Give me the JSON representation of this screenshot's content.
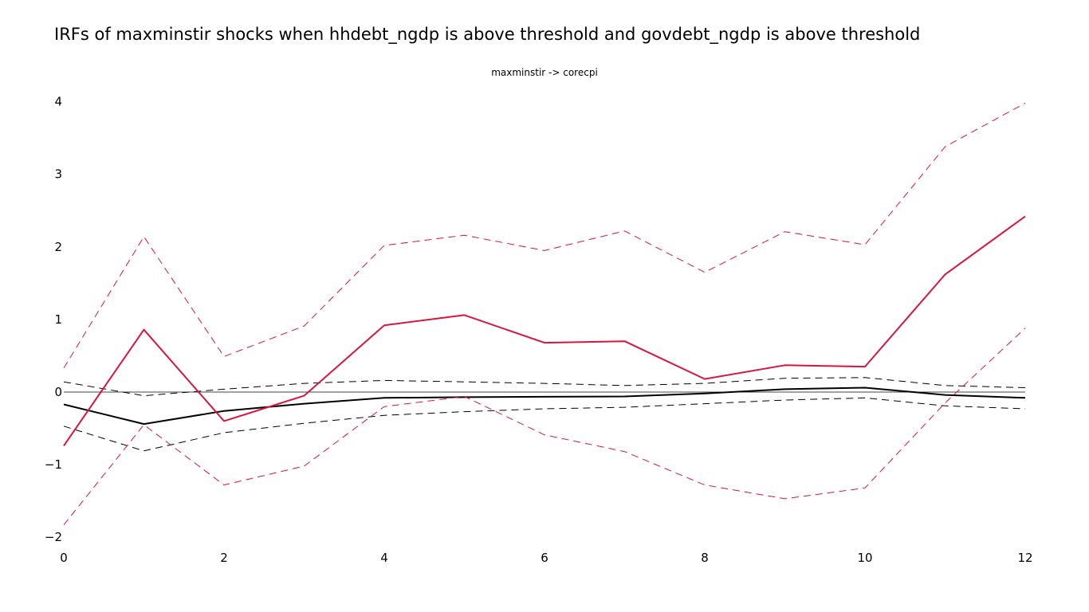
{
  "title": "IRFs of maxminstir shocks when hhdebt_ngdp is above threshold and govdebt_ngdp is above threshold",
  "colors": {
    "background": "#ffffff",
    "zero_line": "#444444",
    "linear": "#000000",
    "regime": "#dc143c"
  },
  "chart_data": {
    "type": "line",
    "subplot_title": "maxminstir -> corecpi",
    "xlabel": "",
    "ylabel": "",
    "xlim": [
      0,
      12
    ],
    "ylim": [
      -2.2,
      4.1
    ],
    "grid": false,
    "legend": "none",
    "x_ticks": [
      0,
      2,
      4,
      6,
      8,
      10,
      12
    ],
    "y_ticks": [
      -2,
      -1,
      0,
      1,
      2,
      3,
      4
    ],
    "y_tick_labels": [
      "−2",
      "−1",
      "0",
      "1",
      "2",
      "3",
      "4"
    ],
    "x": [
      0,
      1,
      2,
      3,
      4,
      5,
      6,
      7,
      8,
      9,
      10,
      11,
      12
    ],
    "series": [
      {
        "color": "#000000",
        "style": "solid",
        "values": [
          -0.17,
          -0.44,
          -0.26,
          -0.16,
          -0.08,
          -0.07,
          -0.065,
          -0.06,
          -0.02,
          0.04,
          0.06,
          -0.04,
          -0.08
        ]
      },
      {
        "color": "#000000",
        "style": "dashed",
        "values": [
          0.14,
          -0.05,
          0.04,
          0.12,
          0.16,
          0.14,
          0.12,
          0.09,
          0.12,
          0.19,
          0.2,
          0.09,
          0.06
        ]
      },
      {
        "color": "#000000",
        "style": "dashed",
        "values": [
          -0.47,
          -0.81,
          -0.56,
          -0.43,
          -0.32,
          -0.27,
          -0.23,
          -0.21,
          -0.16,
          -0.11,
          -0.08,
          -0.19,
          -0.23
        ]
      },
      {
        "color": "#dc143c",
        "style": "solid",
        "values": [
          -0.74,
          0.86,
          -0.4,
          -0.05,
          0.92,
          1.06,
          0.68,
          0.7,
          0.18,
          0.37,
          0.35,
          1.62,
          2.42
        ]
      },
      {
        "color": "#dc143c",
        "style": "dashed",
        "values": [
          0.33,
          2.14,
          0.49,
          0.91,
          2.02,
          2.16,
          1.95,
          2.22,
          1.65,
          2.21,
          2.03,
          3.38,
          3.98
        ]
      },
      {
        "color": "#dc143c",
        "style": "dashed",
        "values": [
          -1.83,
          -0.45,
          -1.28,
          -1.02,
          -0.2,
          -0.06,
          -0.59,
          -0.82,
          -1.28,
          -1.47,
          -1.32,
          -0.15,
          0.88
        ]
      }
    ]
  }
}
